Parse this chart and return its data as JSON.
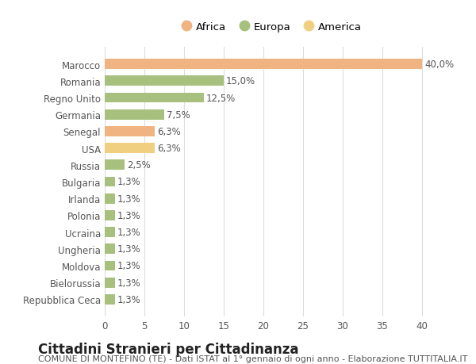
{
  "countries": [
    "Marocco",
    "Romania",
    "Regno Unito",
    "Germania",
    "Senegal",
    "USA",
    "Russia",
    "Bulgaria",
    "Irlanda",
    "Polonia",
    "Ucraina",
    "Ungheria",
    "Moldova",
    "Bielorussia",
    "Repubblica Ceca"
  ],
  "values": [
    40.0,
    15.0,
    12.5,
    7.5,
    6.3,
    6.3,
    2.5,
    1.3,
    1.3,
    1.3,
    1.3,
    1.3,
    1.3,
    1.3,
    1.3
  ],
  "colors": [
    "#F0B482",
    "#A8C07E",
    "#A8C07E",
    "#A8C07E",
    "#F0B482",
    "#F0D080",
    "#A8C07E",
    "#A8C07E",
    "#A8C07E",
    "#A8C07E",
    "#A8C07E",
    "#A8C07E",
    "#A8C07E",
    "#A8C07E",
    "#A8C07E"
  ],
  "labels": [
    "40,0%",
    "15,0%",
    "12,5%",
    "7,5%",
    "6,3%",
    "6,3%",
    "2,5%",
    "1,3%",
    "1,3%",
    "1,3%",
    "1,3%",
    "1,3%",
    "1,3%",
    "1,3%",
    "1,3%"
  ],
  "continent_names": [
    "Africa",
    "Europa",
    "America"
  ],
  "continent_colors": [
    "#F0B482",
    "#A8C07E",
    "#F0D080"
  ],
  "title": "Cittadini Stranieri per Cittadinanza",
  "subtitle": "COMUNE DI MONTEFINO (TE) - Dati ISTAT al 1° gennaio di ogni anno - Elaborazione TUTTITALIA.IT",
  "xlim": [
    0,
    42
  ],
  "xticks": [
    0,
    5,
    10,
    15,
    20,
    25,
    30,
    35,
    40
  ],
  "bg_color": "#ffffff",
  "grid_color": "#dddddd",
  "bar_height": 0.6,
  "label_fontsize": 8.5,
  "tick_fontsize": 8.5,
  "title_fontsize": 12,
  "subtitle_fontsize": 8
}
